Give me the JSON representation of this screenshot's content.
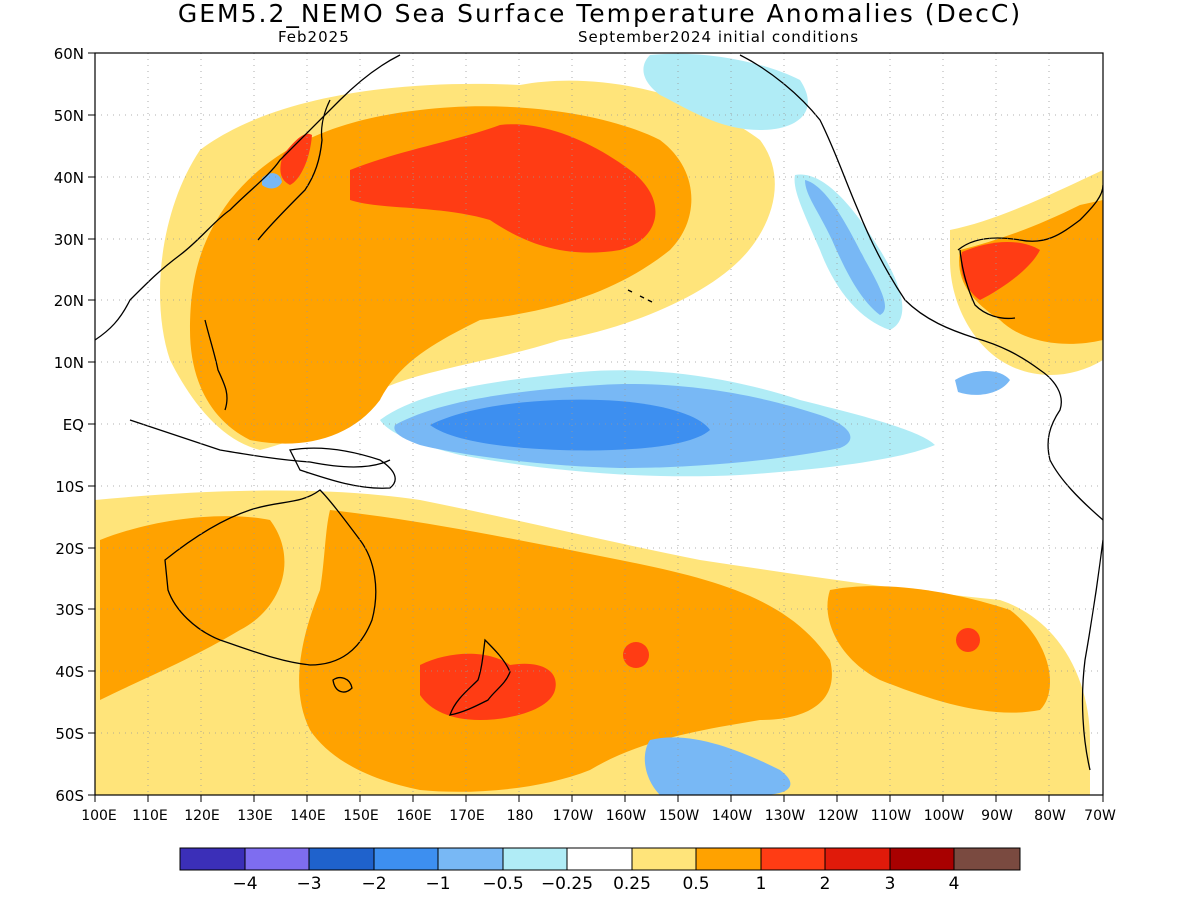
{
  "title": "GEM5.2_NEMO Sea Surface Temperature Anomalies (DecC)",
  "subtitle_left": "Feb2025",
  "subtitle_right": "September2024 initial conditions",
  "map": {
    "lat_labels": [
      "60N",
      "50N",
      "40N",
      "30N",
      "20N",
      "10N",
      "EQ",
      "10S",
      "20S",
      "30S",
      "40S",
      "50S",
      "60S"
    ],
    "lon_labels": [
      "100E",
      "110E",
      "120E",
      "130E",
      "140E",
      "150E",
      "160E",
      "170E",
      "180",
      "170W",
      "160W",
      "150W",
      "140W",
      "130W",
      "120W",
      "110W",
      "100W",
      "90W",
      "80W",
      "70W"
    ],
    "lat_range": [
      -60,
      60
    ],
    "lon_range": [
      "100E",
      "70W"
    ],
    "grid": true
  },
  "colorbar": {
    "colors": [
      "#3b2fb8",
      "#7e6df0",
      "#1f62cc",
      "#3d8ff0",
      "#78b8f5",
      "#b0ecf6",
      "#ffffff",
      "#ffe47a",
      "#ffa200",
      "#ff3c14",
      "#e01a0a",
      "#a80000",
      "#7a4a40"
    ],
    "labels": [
      "−4",
      "−3",
      "−2",
      "−1",
      "−0.5",
      "−0.25",
      "0.25",
      "0.5",
      "1",
      "2",
      "3",
      "4"
    ]
  }
}
